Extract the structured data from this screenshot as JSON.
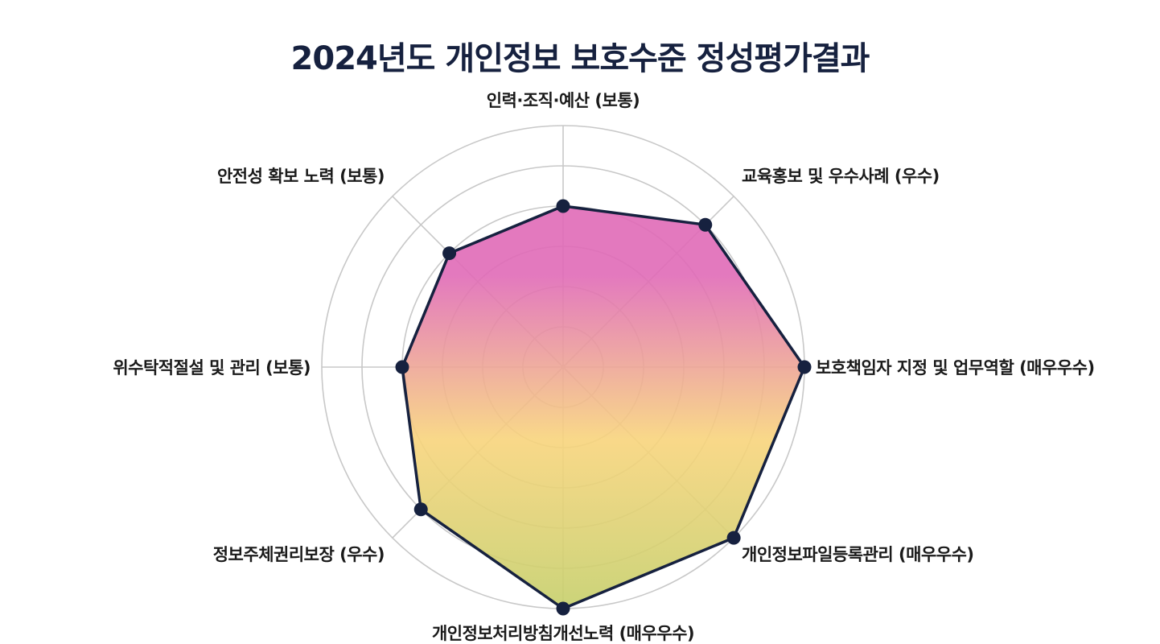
{
  "chart_data": {
    "type": "radar",
    "title": "2024년도 개인정보 보호수준 정성평가결과",
    "axes": [
      "인력·조직·예산 (보통)",
      "교육홍보 및 우수사례 (우수)",
      "보호책임자 지정 및 업무역할 (매우우수)",
      "개인정보파일등록관리 (매우우수)",
      "개인정보처리방침개선노력 (매우우수)",
      "정보주체권리보장 (우수)",
      "위수탁적절설 및 관리 (보통)",
      "안전성 확보 노력 (보통)"
    ],
    "values": [
      2,
      2.5,
      3,
      3,
      3,
      2.5,
      2,
      2
    ],
    "range": [
      0,
      3
    ],
    "rings": 6,
    "grid": true,
    "colors": {
      "grid": "#c8c8c8",
      "outline": "#16213f",
      "marker": "#16213f",
      "fill_top": "#e06ab7",
      "fill_mid": "#f8d47c",
      "fill_bottom": "#c4cf6a"
    }
  }
}
